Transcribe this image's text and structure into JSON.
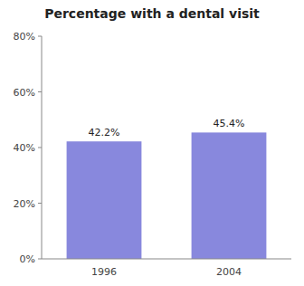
{
  "chart_data": {
    "type": "bar",
    "title": "Percentage with a dental visit",
    "categories": [
      "1996",
      "2004"
    ],
    "values": [
      42.2,
      45.4
    ],
    "value_labels": [
      "42.2%",
      "45.4%"
    ],
    "data_labels": true,
    "color": "#8888dd",
    "ylim": [
      0,
      80
    ],
    "yticks": [
      {
        "value": 0,
        "label": "0%"
      },
      {
        "value": 20,
        "label": "20%"
      },
      {
        "value": 40,
        "label": "40%"
      },
      {
        "value": 60,
        "label": "60%"
      },
      {
        "value": 80,
        "label": "80%"
      }
    ],
    "grid": false
  }
}
